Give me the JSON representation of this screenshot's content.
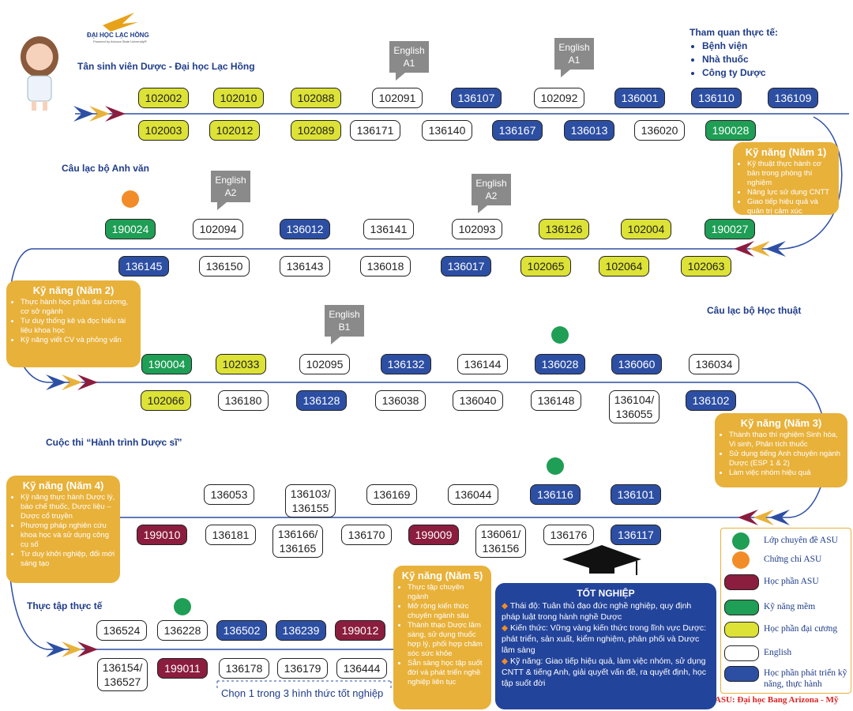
{
  "header": {
    "logo": "ĐẠI HỌC LẠC HỒNG",
    "logo_sub": "Powered by Arizona State University®",
    "title": "Tân sinh viên Dược - Đại học Lạc Hồng"
  },
  "tour": {
    "title": "Tham quan thực tế:",
    "items": [
      "Bệnh viện",
      "Nhà thuốc",
      "Công ty Dược"
    ]
  },
  "sections": [
    "Câu lạc bộ Anh văn",
    "Câu lạc bộ Học thuật",
    "Cuộc thi “Hành trình Dược sĩ”",
    "Thực tập thực tế"
  ],
  "english_tags": [
    [
      "English",
      "A1"
    ],
    [
      "English",
      "A1"
    ],
    [
      "English",
      "A2"
    ],
    [
      "English",
      "A2"
    ],
    [
      "English",
      "B1"
    ]
  ],
  "course_rows": [
    [
      {
        "label": "102002",
        "color": "#dde236"
      },
      {
        "label": "102010",
        "color": "#dde236"
      },
      {
        "label": "102088",
        "color": "#dde236"
      },
      {
        "label": "102091",
        "color": "#ffffff"
      },
      {
        "label": "136107",
        "color": "#2d4fa3"
      },
      {
        "label": "102092",
        "color": "#ffffff"
      },
      {
        "label": "136001",
        "color": "#2d4fa3"
      },
      {
        "label": "136110",
        "color": "#2d4fa3"
      },
      {
        "label": "136109",
        "color": "#2d4fa3"
      }
    ],
    [
      {
        "label": "102003",
        "color": "#dde236"
      },
      {
        "label": "102012",
        "color": "#dde236"
      },
      {
        "label": "102089",
        "color": "#dde236"
      },
      {
        "label": "136171",
        "color": "#ffffff"
      },
      {
        "label": "136140",
        "color": "#ffffff"
      },
      {
        "label": "136167",
        "color": "#2d4fa3"
      },
      {
        "label": "136013",
        "color": "#2d4fa3"
      },
      {
        "label": "136020",
        "color": "#ffffff"
      },
      {
        "label": "190028",
        "color": "#1f9e55"
      }
    ],
    [
      {
        "label": "190024",
        "color": "#1f9e55"
      },
      {
        "label": "102094",
        "color": "#ffffff"
      },
      {
        "label": "136012",
        "color": "#2d4fa3"
      },
      {
        "label": "136141",
        "color": "#ffffff"
      },
      {
        "label": "102093",
        "color": "#ffffff"
      },
      {
        "label": "136126",
        "color": "#dde236"
      },
      {
        "label": "102004",
        "color": "#dde236"
      },
      {
        "label": "190027",
        "color": "#1f9e55"
      }
    ],
    [
      {
        "label": "136145",
        "color": "#2d4fa3"
      },
      {
        "label": "136150",
        "color": "#ffffff"
      },
      {
        "label": "136143",
        "color": "#ffffff"
      },
      {
        "label": "136018",
        "color": "#ffffff"
      },
      {
        "label": "136017",
        "color": "#2d4fa3"
      },
      {
        "label": "102065",
        "color": "#dde236"
      },
      {
        "label": "102064",
        "color": "#dde236"
      },
      {
        "label": "102063",
        "color": "#dde236"
      }
    ],
    [
      {
        "label": "190004",
        "color": "#1f9e55"
      },
      {
        "label": "102033",
        "color": "#dde236"
      },
      {
        "label": "102095",
        "color": "#ffffff"
      },
      {
        "label": "136132",
        "color": "#2d4fa3"
      },
      {
        "label": "136144",
        "color": "#ffffff"
      },
      {
        "label": "136028",
        "color": "#2d4fa3"
      },
      {
        "label": "136060",
        "color": "#2d4fa3"
      },
      {
        "label": "136034",
        "color": "#ffffff"
      }
    ],
    [
      {
        "label": "102066",
        "color": "#dde236"
      },
      {
        "label": "136180",
        "color": "#ffffff"
      },
      {
        "label": "136128",
        "color": "#2d4fa3"
      },
      {
        "label": "136038",
        "color": "#ffffff"
      },
      {
        "label": "136040",
        "color": "#ffffff"
      },
      {
        "label": "136148",
        "color": "#ffffff"
      },
      {
        "label": "136104/\n136055",
        "color": "#ffffff"
      },
      {
        "label": "136102",
        "color": "#2d4fa3"
      }
    ],
    [
      {
        "label": "136053",
        "color": "#ffffff"
      },
      {
        "label": "136103/\n136155",
        "color": "#ffffff"
      },
      {
        "label": "136169",
        "color": "#ffffff"
      },
      {
        "label": "136044",
        "color": "#ffffff"
      },
      {
        "label": "136116",
        "color": "#2d4fa3"
      },
      {
        "label": "136101",
        "color": "#2d4fa3"
      }
    ],
    [
      {
        "label": "199010",
        "color": "#8b1d3e"
      },
      {
        "label": "136181",
        "color": "#ffffff"
      },
      {
        "label": "136166/\n136165",
        "color": "#ffffff"
      },
      {
        "label": "136170",
        "color": "#ffffff"
      },
      {
        "label": "199009",
        "color": "#8b1d3e"
      },
      {
        "label": "136061/\n136156",
        "color": "#ffffff"
      },
      {
        "label": "136176",
        "color": "#ffffff"
      },
      {
        "label": "136117",
        "color": "#2d4fa3"
      }
    ],
    [
      {
        "label": "136524",
        "color": "#ffffff"
      },
      {
        "label": "136228",
        "color": "#ffffff"
      },
      {
        "label": "136502",
        "color": "#2d4fa3"
      },
      {
        "label": "136239",
        "color": "#2d4fa3"
      },
      {
        "label": "199012",
        "color": "#8b1d3e"
      }
    ],
    [
      {
        "label": "136154/\n136527",
        "color": "#ffffff"
      },
      {
        "label": "199011",
        "color": "#8b1d3e"
      },
      {
        "label": "136178",
        "color": "#ffffff"
      },
      {
        "label": "136179",
        "color": "#ffffff"
      },
      {
        "label": "136444",
        "color": "#ffffff"
      }
    ]
  ],
  "skills": [
    {
      "title": "Kỹ năng (Năm 1)",
      "items": [
        "Kỹ thuật thực hành cơ bản trong phòng thí nghiệm",
        "Năng lực sử dụng CNTT",
        "Giao tiếp hiệu quả và quản trị cảm xúc"
      ]
    },
    {
      "title": "Kỹ năng (Năm 2)",
      "items": [
        "Thực hành học phần đại cương, cơ sở ngành",
        "Tư duy thống kê và đọc hiểu tài liệu khoa học",
        "Kỹ năng viết CV và phỏng vấn"
      ]
    },
    {
      "title": "Kỹ năng (Năm 3)",
      "items": [
        "Thành thạo thí nghiệm Sinh hóa, Vi sinh, Phân tích thuốc",
        "Sử dụng tiếng Anh chuyên ngành Dược (ESP 1 & 2)",
        "Làm việc nhóm hiệu quả"
      ]
    },
    {
      "title": "Kỹ năng (Năm 4)",
      "items": [
        "Kỹ năng thực hành Dược lý, bào chế thuốc, Dược liệu – Dược cổ truyền",
        "Phương pháp nghiên cứu khoa học và sử dụng công cụ số",
        "Tư duy khởi nghiệp, đổi mới sáng tạo"
      ]
    },
    {
      "title": "Kỹ năng (Năm 5)",
      "items": [
        "Thực tập chuyên ngành",
        "Mở rộng kiến thức chuyên ngành sâu",
        "Thành thạo Dược lâm sàng, sử dụng thuốc hợp lý, phối hợp chăm sóc sức khỏe",
        "Sẵn sàng học tập suốt đời và phát triển nghề nghiệp liên tục"
      ]
    }
  ],
  "graduation": {
    "title": "TỐT NGHIỆP",
    "items": [
      "Thái độ: Tuân thủ đạo đức nghề nghiệp, quy định pháp luật trong hành nghề Dược",
      "Kiến thức: Vững vàng kiến thức trong lĩnh vực Dược: phát triển, sản xuất, kiểm nghiệm, phân phối và Dược lâm sàng",
      "Kỹ năng: Giao tiếp hiệu quả, làm việc nhóm, sử dụng CNTT & tiếng Anh, giải quyết vấn đề, ra quyết định, học tập suốt đời"
    ]
  },
  "note": "Chọn 1 trong 3 hình thức tốt nghiệp",
  "legend": {
    "items": [
      {
        "label": "Lớp chuyên đề ASU",
        "color": "#1f9e55",
        "marker": "circle"
      },
      {
        "label": "Chứng chỉ ASU",
        "color": "#f28c28",
        "marker": "circle"
      },
      {
        "label": "Học phần ASU",
        "color": "#8b1d3e",
        "marker": "pill"
      },
      {
        "label": "Kỹ năng mềm",
        "color": "#1f9e55",
        "marker": "pill"
      },
      {
        "label": "Học phần đại cương",
        "color": "#dde236",
        "marker": "pill"
      },
      {
        "label": "English",
        "color": "#ffffff",
        "marker": "pill"
      },
      {
        "label": "Học phần phát triển kỹ năng, thực hành",
        "color": "#2d4fa3",
        "marker": "pill"
      }
    ]
  },
  "footer": "ASU: Đại học Bang Arizona - Mỹ"
}
